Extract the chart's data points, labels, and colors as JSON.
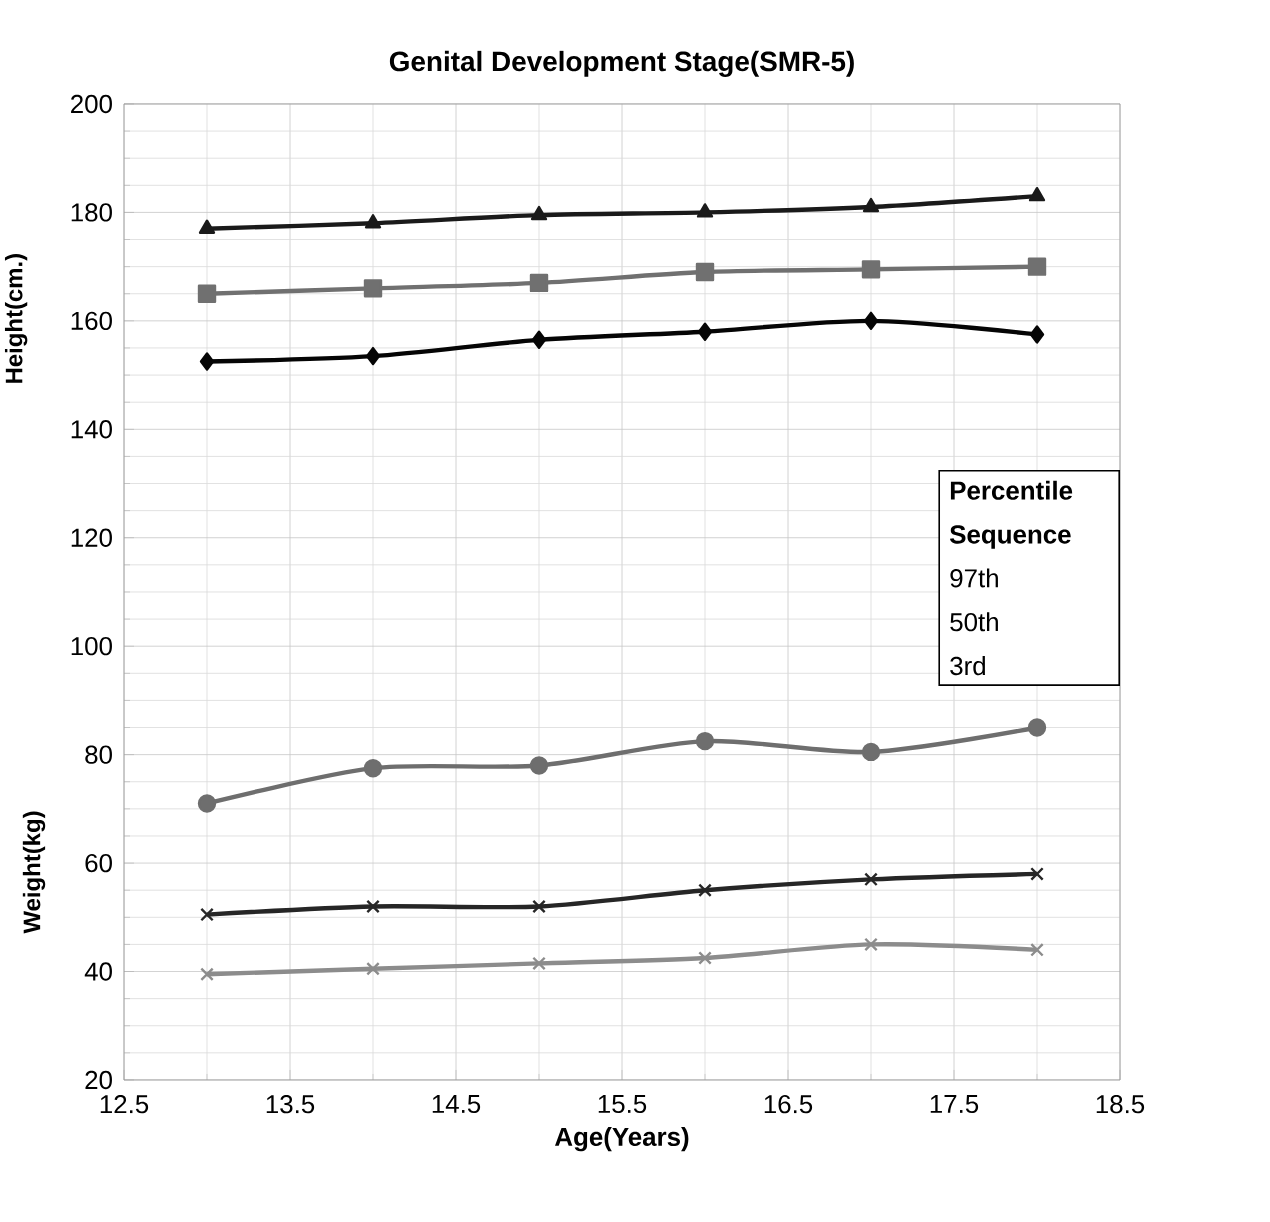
{
  "chart_data": {
    "type": "line",
    "title": "Genital Development Stage(SMR-5)",
    "xlabel": "Age(Years)",
    "ylabel": "Height(cm.)",
    "legend_title": "Percentile Sequence",
    "annotations": [
      "Weight(kg)",
      "97th",
      "50th",
      "3rd"
    ],
    "x": [
      13,
      14,
      15,
      16,
      17,
      18
    ],
    "series": [
      {
        "color": "#1a1a1a",
        "marker": "triangle",
        "values": [
          177,
          178,
          179.5,
          180,
          181,
          183
        ]
      },
      {
        "color": "#707070",
        "marker": "square",
        "values": [
          165,
          166,
          167,
          169,
          169.5,
          170
        ]
      },
      {
        "color": "#050505",
        "marker": "diamond",
        "values": [
          152.5,
          153.5,
          156.5,
          158,
          160,
          157.5
        ]
      },
      {
        "color": "#6e6e6e",
        "marker": "circle",
        "values": [
          71,
          77.5,
          78,
          82.5,
          80.5,
          85
        ]
      },
      {
        "color": "#262626",
        "marker": "cross",
        "values": [
          50.5,
          52,
          52,
          55,
          57,
          58
        ]
      },
      {
        "color": "#8c8c8c",
        "marker": "cross",
        "values": [
          39.5,
          40.5,
          41.5,
          42.5,
          45,
          44
        ]
      }
    ],
    "xlim": [
      12.5,
      18.5
    ],
    "xticks": [
      12.5,
      13.5,
      14.5,
      15.5,
      16.5,
      17.5,
      18.5
    ],
    "ylim": [
      20,
      200
    ],
    "yticks": [
      20,
      40,
      60,
      80,
      100,
      120,
      140,
      160,
      180,
      200
    ],
    "grid": true,
    "line_style": "solid"
  }
}
